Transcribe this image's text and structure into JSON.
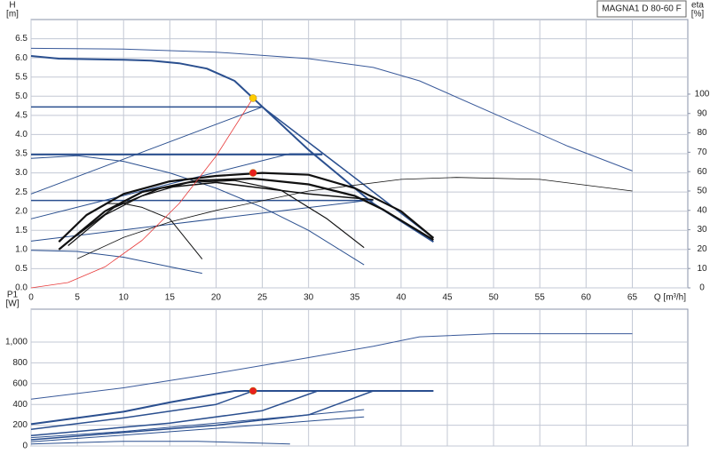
{
  "chart_data": [
    {
      "type": "line",
      "title": "MAGNA1 D 80-60 F",
      "xlabel": "Q [m³/h]",
      "ylabel": "H",
      "yunit": "[m]",
      "y2label": "eta",
      "y2unit": "[%]",
      "xlim": [
        0,
        71
      ],
      "xticks": [
        0,
        5,
        10,
        15,
        20,
        25,
        30,
        35,
        40,
        45,
        50,
        55,
        60,
        65
      ],
      "ylim": [
        0,
        7
      ],
      "yticks": [
        {
          "value": 0,
          "label": "0.0"
        },
        0.5,
        {
          "value": 1,
          "label": "1.0"
        },
        1.5,
        {
          "value": 2,
          "label": "2.0"
        },
        2.5,
        {
          "value": 3,
          "label": "3.0"
        },
        3.5,
        {
          "value": 4,
          "label": "4.0"
        },
        4.5,
        {
          "value": 5,
          "label": "5.0"
        },
        5.5,
        {
          "value": 6,
          "label": "6.0"
        },
        6.5
      ],
      "y2lim": [
        0,
        138.5
      ],
      "y2ticks": [
        0,
        10,
        20,
        30,
        40,
        50,
        60,
        70,
        80,
        90,
        100
      ],
      "grid": true,
      "series": [
        {
          "color": "#3a5a9a",
          "width": 1,
          "x": [
            0,
            10,
            20,
            30,
            37,
            42,
            50,
            58,
            65
          ],
          "values": [
            6.25,
            6.23,
            6.15,
            5.98,
            5.75,
            5.4,
            4.55,
            3.7,
            3.05
          ]
        },
        {
          "color": "#2a4f8f",
          "width": 2,
          "x": [
            0,
            3,
            10,
            13,
            16,
            19,
            22,
            24,
            30,
            37,
            43.5
          ],
          "values": [
            6.05,
            5.98,
            5.95,
            5.93,
            5.86,
            5.72,
            5.4,
            4.95,
            3.6,
            2.2,
            1.2
          ]
        },
        {
          "color": "#2a4f8f",
          "width": 1.5,
          "x": [
            0,
            25,
            43.5
          ],
          "values": [
            4.72,
            4.72,
            1.3
          ]
        },
        {
          "color": "#2a4f8f",
          "width": 1,
          "x": [
            0,
            25
          ],
          "values": [
            2.45,
            4.72
          ]
        },
        {
          "color": "#2a4f8f",
          "width": 2,
          "x": [
            0,
            31.5
          ],
          "values": [
            3.48,
            3.48
          ]
        },
        {
          "color": "#2a4f8f",
          "width": 1,
          "x": [
            0,
            28,
            31.5
          ],
          "values": [
            1.8,
            3.5,
            3.5
          ]
        },
        {
          "color": "#2a4f8f",
          "width": 1.5,
          "x": [
            0,
            37
          ],
          "values": [
            2.28,
            2.28
          ]
        },
        {
          "color": "#2a4f8f",
          "width": 1,
          "x": [
            0,
            37
          ],
          "values": [
            1.22,
            2.3
          ]
        },
        {
          "color": "#2a4f8f",
          "width": 1,
          "x": [
            0,
            5,
            10,
            15,
            20,
            25,
            30,
            36
          ],
          "values": [
            3.38,
            3.45,
            3.3,
            3.0,
            2.6,
            2.1,
            1.5,
            0.6
          ]
        },
        {
          "color": "#2a4f8f",
          "width": 1,
          "x": [
            0,
            5,
            10,
            15,
            18.5
          ],
          "values": [
            0.98,
            0.95,
            0.8,
            0.55,
            0.38
          ]
        },
        {
          "color": "#111111",
          "width": 1,
          "x": [
            8,
            10,
            12,
            15,
            18.5
          ],
          "values": [
            2.2,
            2.2,
            2.1,
            1.8,
            0.75
          ]
        },
        {
          "color": "#111111",
          "width": 2.2,
          "x": [
            3,
            6,
            10,
            15,
            20,
            25,
            30,
            35,
            40,
            43.5
          ],
          "values": [
            1.2,
            1.9,
            2.45,
            2.78,
            2.92,
            3.0,
            2.95,
            2.6,
            2.0,
            1.3
          ]
        },
        {
          "color": "#111111",
          "width": 2.2,
          "x": [
            3,
            8,
            12,
            18,
            24,
            30,
            35,
            38,
            43.5
          ],
          "values": [
            1.0,
            2.0,
            2.5,
            2.8,
            2.85,
            2.7,
            2.4,
            2.05,
            1.25
          ]
        },
        {
          "color": "#111111",
          "width": 1.2,
          "x": [
            4,
            8,
            12,
            17,
            22,
            27,
            32,
            36
          ],
          "values": [
            1.1,
            1.9,
            2.4,
            2.75,
            2.8,
            2.55,
            1.8,
            1.05
          ]
        },
        {
          "color": "#111111",
          "width": 1.5,
          "x": [
            4,
            9,
            14,
            20,
            25,
            30,
            37
          ],
          "values": [
            1.2,
            2.1,
            2.6,
            2.75,
            2.6,
            2.45,
            2.3
          ]
        },
        {
          "color": "#111111",
          "width": 0.8,
          "axis": "y2",
          "x": [
            5,
            10,
            15,
            20,
            30,
            40,
            46,
            55,
            65
          ],
          "values": [
            15,
            26,
            34,
            40,
            50,
            56,
            57,
            56,
            50
          ]
        },
        {
          "color": "#e83a3a",
          "width": 0.8,
          "x": [
            0,
            4,
            8,
            12,
            16,
            20,
            24
          ],
          "values": [
            0,
            0.14,
            0.55,
            1.24,
            2.2,
            3.44,
            4.95
          ]
        }
      ],
      "markers": [
        {
          "x": 24,
          "value": 4.95,
          "color": "#ffcc00"
        },
        {
          "x": 24,
          "value": 3.0,
          "color": "#e8201e"
        }
      ]
    },
    {
      "type": "line",
      "ylabel": "P1",
      "yunit": "[W]",
      "xlim": [
        0,
        71
      ],
      "xticks": [
        0,
        5,
        10,
        15,
        20,
        25,
        30,
        35,
        40,
        45,
        50,
        55,
        60,
        65
      ],
      "ylim": [
        0,
        1316
      ],
      "yticks": [
        0,
        200,
        400,
        600,
        800,
        {
          "value": 1000,
          "label": "1,000"
        }
      ],
      "grid": true,
      "series": [
        {
          "color": "#3a5a9a",
          "width": 1,
          "x": [
            0,
            10,
            20,
            30,
            37,
            42,
            50,
            65
          ],
          "values": [
            450,
            560,
            700,
            850,
            960,
            1050,
            1080,
            1080
          ]
        },
        {
          "color": "#2a4f8f",
          "width": 2,
          "x": [
            0,
            10,
            15,
            20,
            22,
            43.5
          ],
          "values": [
            210,
            330,
            420,
            500,
            530,
            530
          ]
        },
        {
          "color": "#2a4f8f",
          "width": 1.5,
          "x": [
            0,
            10,
            20,
            24
          ],
          "values": [
            160,
            270,
            400,
            530
          ]
        },
        {
          "color": "#2a4f8f",
          "width": 1.5,
          "x": [
            0,
            15,
            25,
            31
          ],
          "values": [
            100,
            220,
            340,
            530
          ]
        },
        {
          "color": "#2a4f8f",
          "width": 1.5,
          "x": [
            0,
            20,
            30,
            37
          ],
          "values": [
            60,
            200,
            300,
            530
          ]
        },
        {
          "color": "#2a4f8f",
          "width": 1,
          "x": [
            0,
            20,
            36
          ],
          "values": [
            40,
            170,
            280
          ]
        },
        {
          "color": "#2a4f8f",
          "width": 1,
          "x": [
            0,
            10,
            20,
            30,
            36
          ],
          "values": [
            80,
            140,
            220,
            300,
            350
          ]
        },
        {
          "color": "#2a4f8f",
          "width": 1,
          "x": [
            0,
            10,
            18,
            28
          ],
          "values": [
            20,
            45,
            45,
            20
          ]
        }
      ],
      "markers": [
        {
          "x": 24,
          "value": 530,
          "color": "#e8201e"
        }
      ]
    }
  ]
}
